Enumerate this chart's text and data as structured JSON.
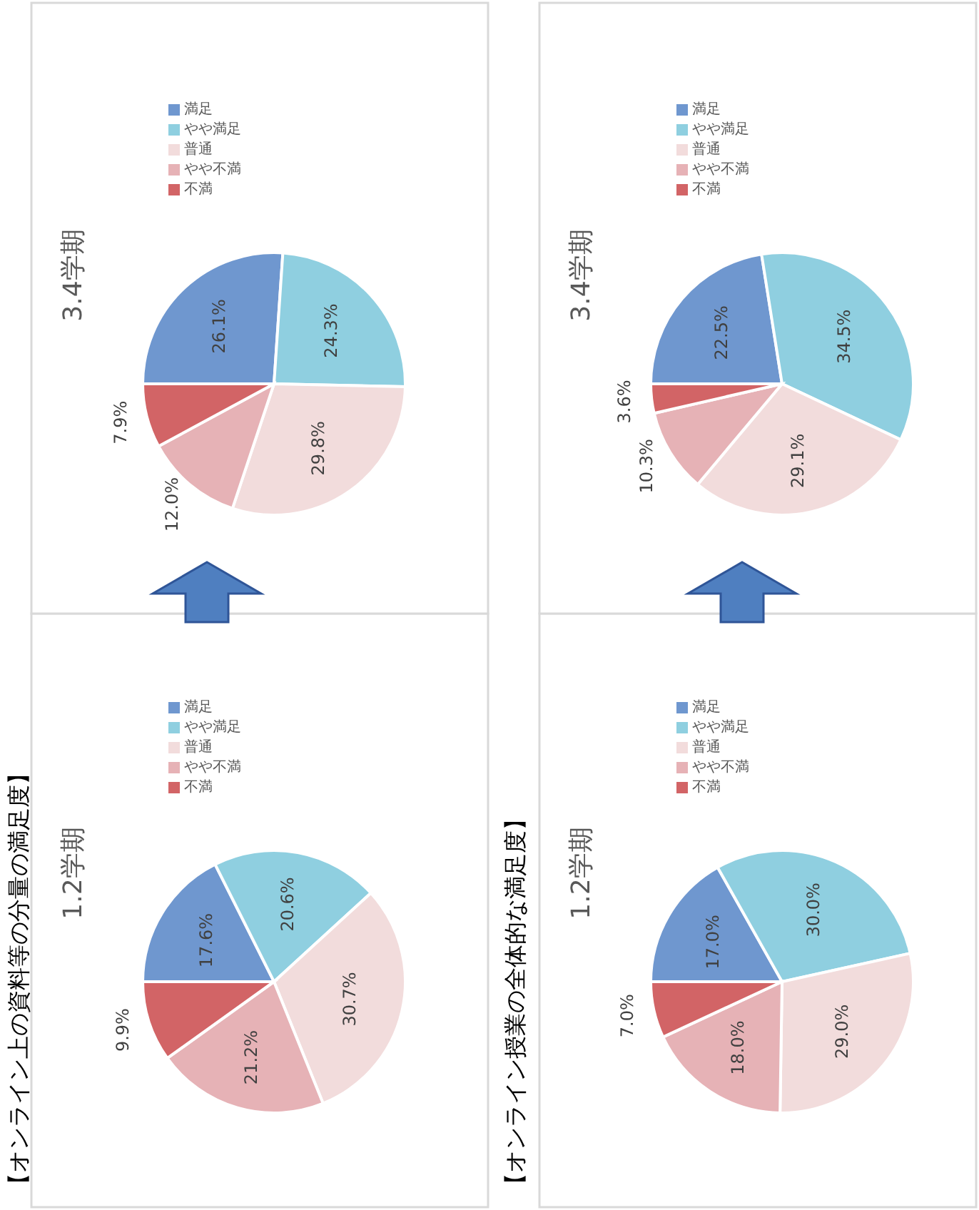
{
  "chart_data": [
    {
      "type": "pie",
      "title": "1.2学期",
      "annotations": [
        "【オンライン上の資料等の分量の満足度】"
      ],
      "categories": [
        "満足",
        "やや満足",
        "普通",
        "やや不満",
        "不満"
      ],
      "values": [
        17.6,
        20.6,
        30.7,
        21.2,
        9.9
      ],
      "value_labels": [
        "17.6%",
        "20.6%",
        "30.7%",
        "21.2%",
        "9.9%"
      ],
      "colors": [
        "#6f97cf",
        "#8fcfe0",
        "#f2dcdc",
        "#e6b2b6",
        "#d26466"
      ],
      "legend": "top left"
    },
    {
      "type": "pie",
      "title": "3.4学期",
      "categories": [
        "満足",
        "やや満足",
        "普通",
        "やや不満",
        "不満"
      ],
      "values": [
        26.1,
        24.3,
        29.8,
        12.0,
        7.9
      ],
      "value_labels": [
        "26.1%",
        "24.3%",
        "29.8%",
        "12.0%",
        "7.9%"
      ],
      "colors": [
        "#6f97cf",
        "#8fcfe0",
        "#f2dcdc",
        "#e6b2b6",
        "#d26466"
      ],
      "legend": "top left"
    },
    {
      "type": "pie",
      "title": "1.2学期",
      "annotations": [
        "【オンライン授業の全体的な満足度】"
      ],
      "categories": [
        "満足",
        "やや満足",
        "普通",
        "やや不満",
        "不満"
      ],
      "values": [
        17.0,
        30.0,
        29.0,
        18.0,
        7.0
      ],
      "value_labels": [
        "17.0%",
        "30.0%",
        "29.0%",
        "18.0%",
        "7.0%"
      ],
      "colors": [
        "#6f97cf",
        "#8fcfe0",
        "#f2dcdc",
        "#e6b2b6",
        "#d26466"
      ],
      "legend": "top left"
    },
    {
      "type": "pie",
      "title": "3.4学期",
      "categories": [
        "満足",
        "やや満足",
        "普通",
        "やや不満",
        "不満"
      ],
      "values": [
        22.5,
        34.5,
        29.1,
        10.3,
        3.6
      ],
      "value_labels": [
        "22.5%",
        "34.5%",
        "29.1%",
        "10.3%",
        "3.6%"
      ],
      "colors": [
        "#6f97cf",
        "#8fcfe0",
        "#f2dcdc",
        "#e6b2b6",
        "#d26466"
      ],
      "legend": "top left"
    }
  ]
}
